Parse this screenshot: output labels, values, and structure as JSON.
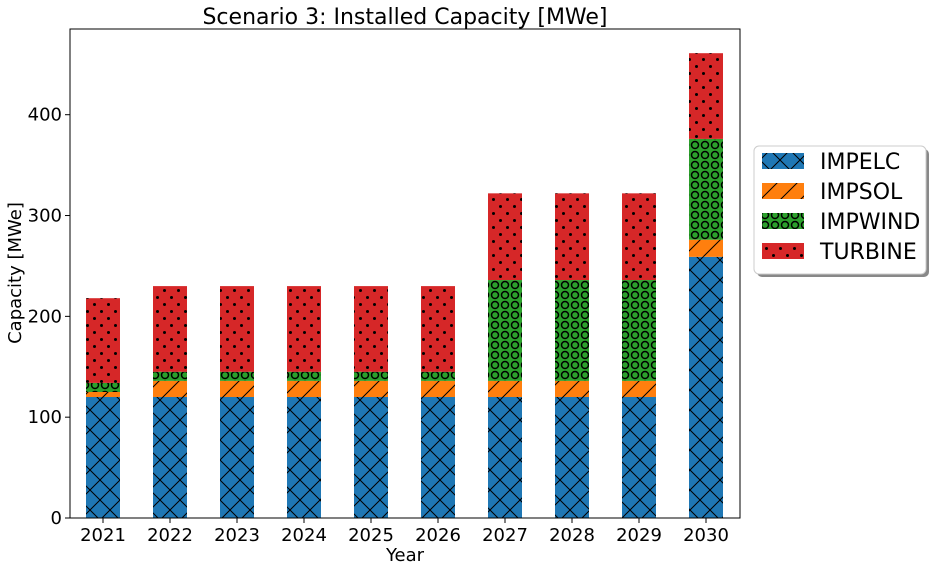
{
  "chart_data": {
    "type": "bar",
    "stacked": true,
    "title": "Scenario 3: Installed Capacity [MWe]",
    "xlabel": "Year",
    "ylabel": "Capacity [MWe]",
    "ylim": [
      0,
      485
    ],
    "yticks": [
      0,
      100,
      200,
      300,
      400
    ],
    "grid": false,
    "legend_position": "right",
    "categories": [
      "2021",
      "2022",
      "2023",
      "2024",
      "2025",
      "2026",
      "2027",
      "2028",
      "2029",
      "2030"
    ],
    "series": [
      {
        "name": "IMPELC",
        "color": "#1f77b4",
        "hatch": "cross-diagonal",
        "values": [
          120,
          120,
          120,
          120,
          120,
          120,
          120,
          120,
          120,
          259
        ]
      },
      {
        "name": "IMPSOL",
        "color": "#ff7f0e",
        "hatch": "forward-diagonal",
        "values": [
          5,
          16,
          16,
          16,
          16,
          16,
          16,
          16,
          16,
          17
        ]
      },
      {
        "name": "IMPWIND",
        "color": "#2ca02c",
        "hatch": "circles",
        "values": [
          9,
          9,
          9,
          9,
          9,
          9,
          100,
          100,
          100,
          100
        ]
      },
      {
        "name": "TURBINE",
        "color": "#d62728",
        "hatch": "dots",
        "values": [
          84,
          85,
          85,
          85,
          85,
          85,
          86,
          86,
          86,
          85
        ]
      }
    ]
  }
}
